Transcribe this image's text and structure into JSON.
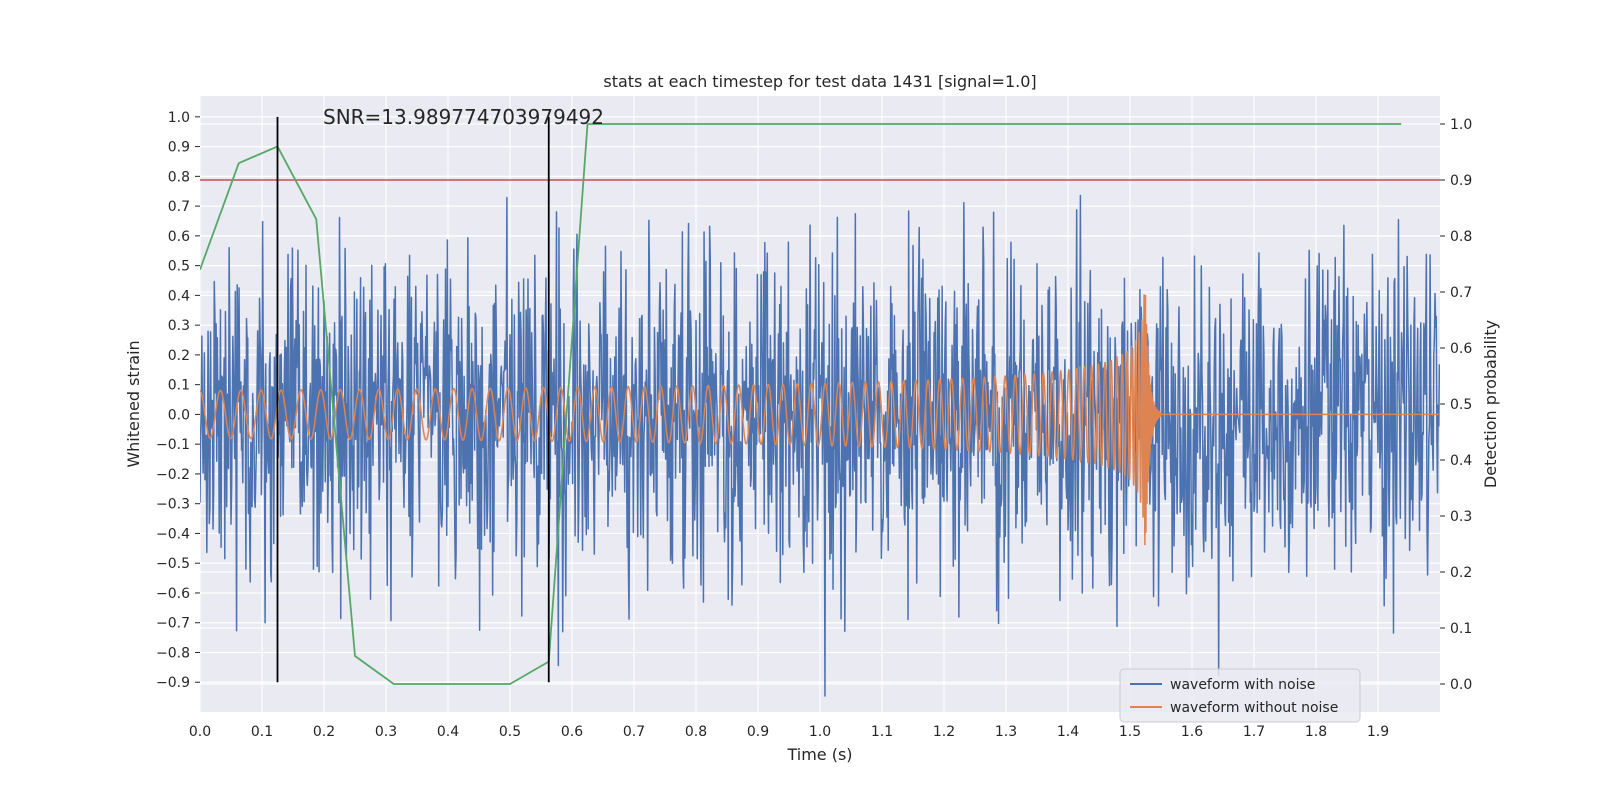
{
  "chart_data": {
    "type": "line",
    "title": "stats at each timestep for test data 1431 [signal=1.0]",
    "annotation": "SNR=13.989774703979492",
    "xlabel": "Time (s)",
    "ylabel": "Whitened strain",
    "y2label": "Detection probability",
    "xlim": [
      0.0,
      2.0
    ],
    "ylim": [
      -1.0,
      1.07
    ],
    "y2lim": [
      -0.05,
      1.05
    ],
    "x_ticks": [
      0.0,
      0.1,
      0.2,
      0.3,
      0.4,
      0.5,
      0.6,
      0.7,
      0.8,
      0.9,
      1.0,
      1.1,
      1.2,
      1.3,
      1.4,
      1.5,
      1.6,
      1.7,
      1.8,
      1.9
    ],
    "x_tick_labels": [
      "0.0",
      "0.1",
      "0.2",
      "0.3",
      "0.4",
      "0.5",
      "0.6",
      "0.7",
      "0.8",
      "0.9",
      "1.0",
      "1.1",
      "1.2",
      "1.3",
      "1.4",
      "1.5",
      "1.6",
      "1.7",
      "1.8",
      "1.9"
    ],
    "y_ticks": [
      1.0,
      0.9,
      0.8,
      0.7,
      0.6,
      0.5,
      0.4,
      0.3,
      0.2,
      0.1,
      0.0,
      -0.1,
      -0.2,
      -0.3,
      -0.4,
      -0.5,
      -0.6,
      -0.7,
      -0.8,
      -0.9
    ],
    "y_tick_labels": [
      "1.0",
      "0.9",
      "0.8",
      "0.7",
      "0.6",
      "0.5",
      "0.4",
      "0.3",
      "0.2",
      "0.1",
      "0.0",
      "−0.1",
      "−0.2",
      "−0.3",
      "−0.4",
      "−0.5",
      "−0.6",
      "−0.7",
      "−0.8",
      "−0.9"
    ],
    "y2_ticks": [
      1.0,
      0.9,
      0.8,
      0.7,
      0.6,
      0.5,
      0.4,
      0.3,
      0.2,
      0.1,
      0.0
    ],
    "y2_tick_labels": [
      "1.0",
      "0.9",
      "0.8",
      "0.7",
      "0.6",
      "0.5",
      "0.4",
      "0.3",
      "0.2",
      "0.1",
      "0.0"
    ],
    "grid": true,
    "legend_position": "lower-right",
    "series": [
      {
        "name": "waveform with noise",
        "color": "#4c72b0",
        "axis": "left",
        "kind": "noise",
        "amplitude": 0.4,
        "seed": 1431
      },
      {
        "name": "waveform without noise",
        "color": "#dd8452",
        "axis": "left",
        "kind": "chirp",
        "amplitude_start": 0.08,
        "amplitude_peak": 0.45,
        "merger_time": 1.525,
        "ringdown_end": 1.55
      }
    ],
    "detection_probability": {
      "color": "#55a868",
      "axis": "right",
      "x": [
        0.0,
        0.0625,
        0.125,
        0.1875,
        0.25,
        0.3125,
        0.375,
        0.4375,
        0.5,
        0.5625,
        0.625,
        0.6875,
        1.9375
      ],
      "y": [
        0.74,
        0.93,
        0.96,
        0.83,
        0.05,
        0.0,
        0.0,
        0.0,
        0.0,
        0.04,
        1.0,
        1.0,
        1.0
      ]
    },
    "threshold": {
      "value": 0.9,
      "axis": "right",
      "color": "#c44e52"
    },
    "vertical_markers": {
      "x": [
        0.125,
        0.5625
      ],
      "ymin": -0.9,
      "ymax": 1.0,
      "color": "#000000"
    }
  }
}
